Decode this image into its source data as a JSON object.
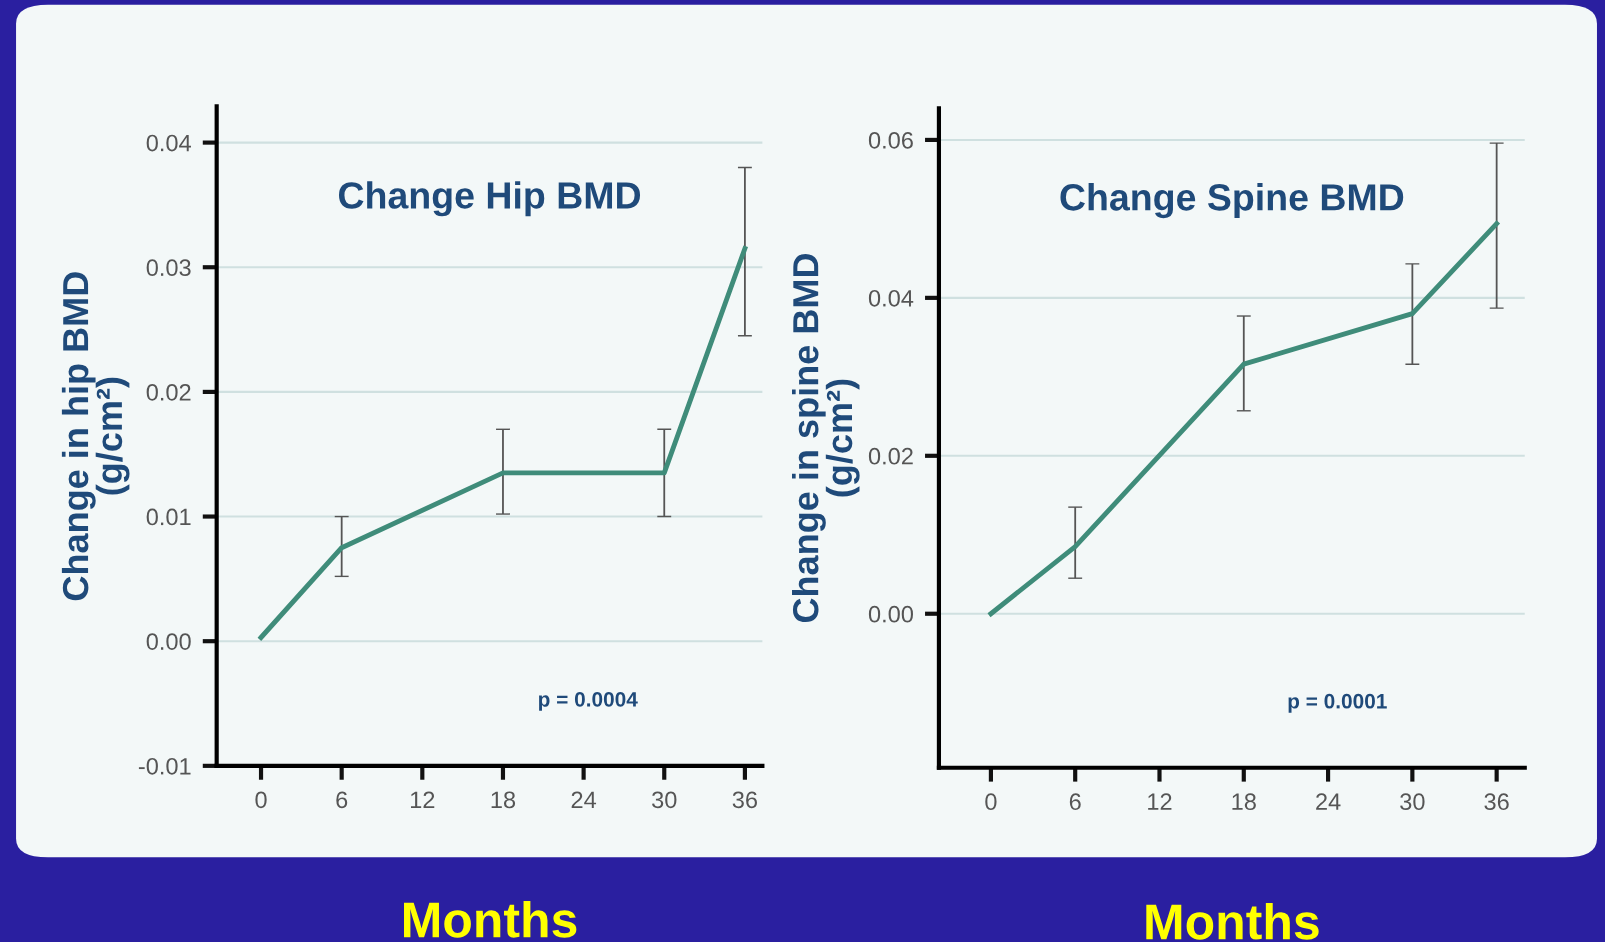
{
  "chart_data": [
    {
      "type": "line",
      "title": "Change Hip BMD",
      "xlabel": "Months",
      "ylabel": "Change in hip BMD\n(g/cm²)",
      "x": [
        0,
        6,
        18,
        30,
        36
      ],
      "series": [
        {
          "color": "#3f8c7a",
          "values": [
            0.0003,
            0.0075,
            0.0135,
            0.0135,
            0.0315
          ],
          "errors": [
            null,
            [
              0.0052,
              0.01
            ],
            [
              0.0102,
              0.017
            ],
            [
              0.01,
              0.017
            ],
            [
              0.0245,
              0.038
            ]
          ]
        }
      ],
      "xlim": [
        -3.3,
        37.3
      ],
      "xticks": [
        0,
        6,
        12,
        18,
        24,
        30,
        36
      ],
      "ylim": [
        -0.01,
        0.0429
      ],
      "yticks": [
        {
          "value": -0.01,
          "label": "-0.01"
        },
        {
          "value": 0,
          "label": "0.00"
        },
        {
          "value": 0.01,
          "label": "0.01"
        },
        {
          "value": 0.02,
          "label": "0.02"
        },
        {
          "value": 0.03,
          "label": "0.03"
        },
        {
          "value": 0.04,
          "label": "0.04"
        }
      ],
      "grid": "y",
      "marker": "none",
      "line_style": "solid",
      "annotations": [
        "p = 0.0004"
      ]
    },
    {
      "type": "line",
      "title": "Change Spine BMD",
      "xlabel": "Months",
      "ylabel": "Change in spine BMD\n(g/cm²)",
      "x": [
        0,
        6,
        18,
        30,
        36
      ],
      "series": [
        {
          "color": "#3f8c7a",
          "values": [
            0.0,
            0.0085,
            0.0316,
            0.038,
            0.0494
          ],
          "errors": [
            null,
            [
              0.0045,
              0.0135
            ],
            [
              0.0257,
              0.0377
            ],
            [
              0.0316,
              0.0443
            ],
            [
              0.0387,
              0.0596
            ]
          ]
        }
      ],
      "xlim": [
        -3.7,
        38
      ],
      "xticks": [
        0,
        6,
        12,
        18,
        24,
        30,
        36
      ],
      "ylim": [
        -0.0195,
        0.064
      ],
      "yticks": [
        {
          "value": 0,
          "label": "0.00"
        },
        {
          "value": 0.02,
          "label": "0.02"
        },
        {
          "value": 0.04,
          "label": "0.04"
        },
        {
          "value": 0.06,
          "label": "0.06"
        }
      ],
      "grid": "y",
      "marker": "none",
      "line_style": "solid",
      "annotations": [
        "p = 0.0001"
      ]
    }
  ]
}
